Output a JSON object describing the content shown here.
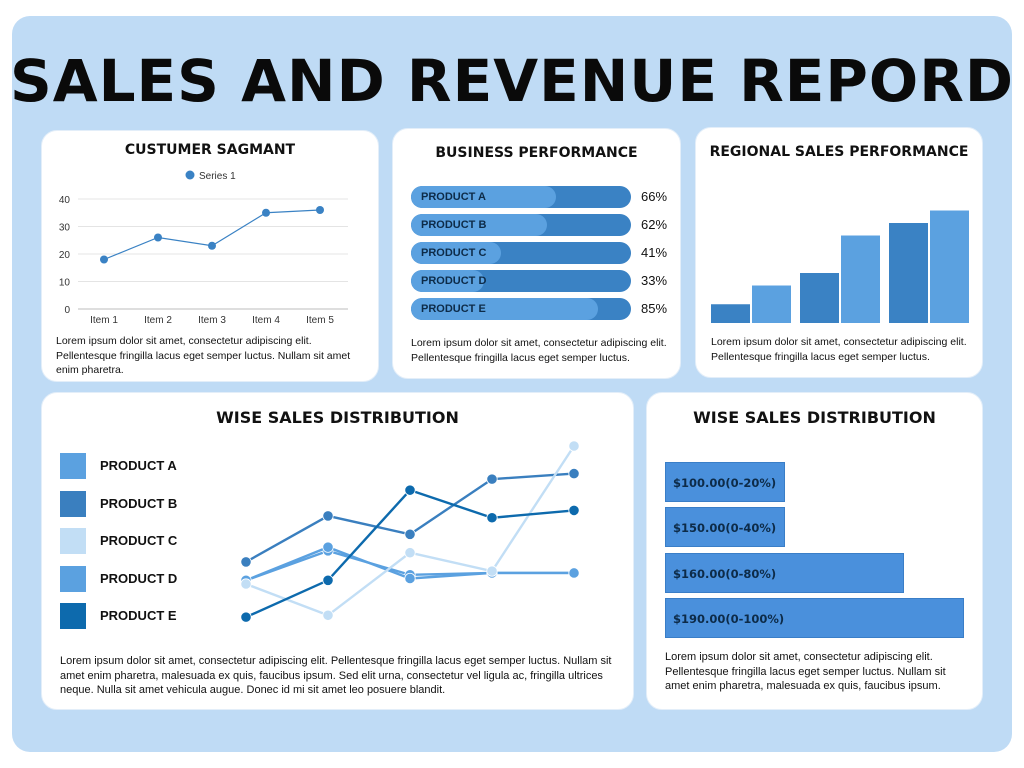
{
  "report_title": "SALES AND REVENUE REPORD",
  "colors": {
    "frame_bg": "#bfdbf5",
    "card_bg": "#ffffff",
    "accent_light": "#5ba1e0",
    "accent_dark": "#3a82c4"
  },
  "customer_segment": {
    "title": "CUSTUMER SAGMANT",
    "text": "Lorem ipsum dolor sit amet, consectetur adipiscing elit. Pellentesque fringilla lacus eget semper luctus. Nullam sit amet enim pharetra."
  },
  "business_performance": {
    "title": "BUSINESS PERFORMANCE",
    "text": "Lorem ipsum dolor sit amet, consectetur adipiscing elit. Pellentesque fringilla lacus eget semper luctus."
  },
  "regional_sales": {
    "title": "REGIONAL SALES PERFORMANCE",
    "text": "Lorem ipsum dolor sit amet, consectetur adipiscing elit. Pellentesque fringilla lacus eget semper luctus."
  },
  "wise_sales_lines": {
    "title": "WISE SALES DISTRIBUTION",
    "text": "Lorem ipsum dolor sit amet, consectetur adipiscing elit. Pellentesque fringilla lacus eget semper luctus. Nullam sit amet enim pharetra, malesuada ex quis, faucibus ipsum. Sed elit urna, consectetur vel ligula ac, fringilla ultrices neque. Nulla sit amet vehicula augue. Donec id mi sit amet leo posuere blandit."
  },
  "wise_sales_ranges": {
    "title": "WISE SALES DISTRIBUTION",
    "text": "Lorem ipsum dolor sit amet, consectetur adipiscing elit. Pellentesque fringilla lacus eget semper luctus. Nullam sit amet enim pharetra, malesuada ex quis, faucibus ipsum."
  },
  "chart_data": [
    {
      "type": "line",
      "title": "CUSTUMER SAGMANT",
      "categories": [
        "Item 1",
        "Item 2",
        "Item 3",
        "Item 4",
        "Item 5"
      ],
      "series": [
        {
          "name": "Series 1",
          "values": [
            18,
            26,
            23,
            35,
            36
          ],
          "color": "#3a82c4"
        }
      ],
      "y_ticks": [
        0,
        10,
        20,
        30,
        40
      ],
      "ylim": [
        0,
        40
      ],
      "grid": true,
      "legend": "top"
    },
    {
      "type": "bar",
      "orientation": "horizontal",
      "title": "BUSINESS PERFORMANCE",
      "categories": [
        "PRODUCT A",
        "PRODUCT B",
        "PRODUCT C",
        "PRODUCT D",
        "PRODUCT E"
      ],
      "values": [
        66,
        62,
        41,
        33,
        85
      ],
      "value_labels": [
        "66%",
        "62%",
        "41%",
        "33%",
        "85%"
      ],
      "unit": "percent"
    },
    {
      "type": "bar",
      "title": "REGIONAL SALES PERFORMANCE",
      "groups": [
        {
          "values": [
            15,
            30
          ],
          "colors": [
            "#3a82c4",
            "#5ba1e0"
          ]
        },
        {
          "values": [
            40,
            70
          ],
          "colors": [
            "#3a82c4",
            "#5ba1e0"
          ]
        },
        {
          "values": [
            80,
            90
          ],
          "colors": [
            "#3a82c4",
            "#5ba1e0"
          ]
        }
      ],
      "ylim": [
        0,
        100
      ],
      "axes_shown": false
    },
    {
      "type": "line",
      "title": "WISE SALES DISTRIBUTION",
      "x": [
        1,
        2,
        3,
        4,
        5
      ],
      "ylim": [
        0,
        100
      ],
      "series": [
        {
          "name": "PRODUCT A",
          "values": [
            27,
            45,
            28,
            31,
            31
          ],
          "color": "#5ba1e0"
        },
        {
          "name": "PRODUCT B",
          "values": [
            37,
            62,
            52,
            82,
            85
          ],
          "color": "#3a7fbf"
        },
        {
          "name": "PRODUCT C",
          "values": [
            25,
            8,
            42,
            32,
            100
          ],
          "color": "#c2def5"
        },
        {
          "name": "PRODUCT D",
          "values": [
            27,
            43,
            30,
            31,
            31
          ],
          "color": "#5ba1e0"
        },
        {
          "name": "PRODUCT E",
          "values": [
            7,
            27,
            76,
            61,
            65
          ],
          "color": "#0d6aad"
        }
      ],
      "legend": "left"
    },
    {
      "type": "bar",
      "orientation": "horizontal",
      "title": "WISE SALES DISTRIBUTION",
      "categories": [
        "$100.00(0-20%)",
        "$150.00(0-40%)",
        "$160.00(0-80%)",
        "$190.00(0-100%)"
      ],
      "values": [
        20,
        40,
        80,
        100
      ],
      "unit": "percent"
    }
  ]
}
